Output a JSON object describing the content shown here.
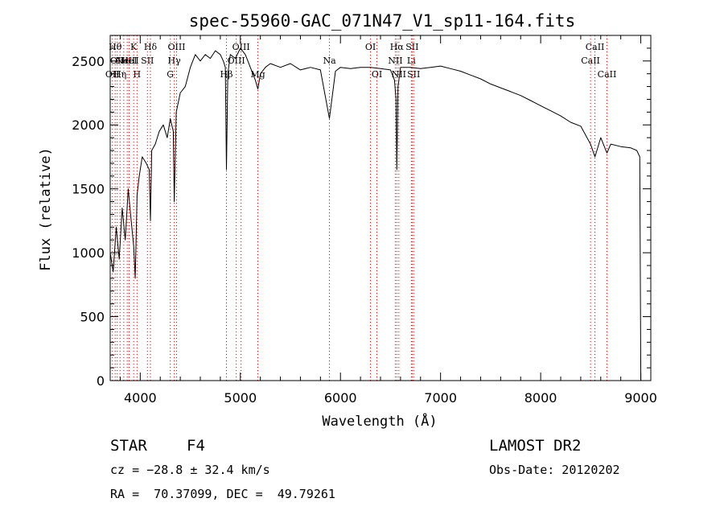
{
  "chart_data": {
    "type": "line",
    "title": "spec-55960-GAC_071N47_V1_sp11-164.fits",
    "xlabel": "Wavelength (Å)",
    "ylabel": "Flux (relative)",
    "xlim": [
      3700,
      9100
    ],
    "ylim": [
      0,
      2700
    ],
    "xticks": [
      4000,
      5000,
      6000,
      7000,
      8000,
      9000
    ],
    "yticks": [
      0,
      500,
      1000,
      1500,
      2000,
      2500
    ],
    "grid": false,
    "legend": "none",
    "line_color": "#000000",
    "marker_color": "#cc0000",
    "series": [
      {
        "x": [
          3700,
          3730,
          3760,
          3790,
          3820,
          3850,
          3880,
          3910,
          3935,
          3950,
          3968,
          3990,
          4020,
          4060,
          4090,
          4102,
          4115,
          4150,
          4190,
          4230,
          4270,
          4300,
          4330,
          4340,
          4360,
          4400,
          4450,
          4500,
          4550,
          4600,
          4650,
          4700,
          4750,
          4800,
          4830,
          4850,
          4861,
          4875,
          4900,
          4950,
          5000,
          5050,
          5100,
          5150,
          5175,
          5200,
          5250,
          5300,
          5400,
          5500,
          5600,
          5700,
          5800,
          5890,
          5950,
          6000,
          6100,
          6200,
          6300,
          6400,
          6500,
          6540,
          6555,
          6563,
          6575,
          6600,
          6700,
          6800,
          6900,
          7000,
          7100,
          7200,
          7300,
          7400,
          7500,
          7600,
          7700,
          7800,
          7900,
          8000,
          8100,
          8200,
          8300,
          8400,
          8498,
          8542,
          8600,
          8662,
          8700,
          8800,
          8900,
          8960,
          8990,
          9000
        ],
        "y": [
          1000,
          850,
          1200,
          950,
          1350,
          1100,
          1500,
          1250,
          1050,
          800,
          1450,
          1600,
          1750,
          1700,
          1650,
          1250,
          1800,
          1850,
          1950,
          2000,
          1900,
          2050,
          1950,
          1400,
          2100,
          2250,
          2300,
          2450,
          2550,
          2500,
          2550,
          2520,
          2580,
          2550,
          2500,
          2450,
          1650,
          2400,
          2550,
          2520,
          2600,
          2550,
          2450,
          2350,
          2280,
          2400,
          2450,
          2480,
          2450,
          2480,
          2430,
          2450,
          2430,
          2050,
          2420,
          2450,
          2440,
          2450,
          2450,
          2440,
          2430,
          2350,
          2200,
          1650,
          2300,
          2450,
          2450,
          2440,
          2450,
          2460,
          2440,
          2420,
          2390,
          2360,
          2320,
          2290,
          2260,
          2230,
          2190,
          2150,
          2110,
          2070,
          2020,
          1990,
          1850,
          1750,
          1900,
          1780,
          1850,
          1830,
          1820,
          1800,
          1750,
          0
        ]
      }
    ],
    "annotations": [
      {
        "wl": 3722,
        "text": "OII",
        "row": 3
      },
      {
        "wl": 3750,
        "text": "Hθ",
        "row": 1
      },
      {
        "wl": 3770,
        "text": "OII",
        "row": 2
      },
      {
        "wl": 3798,
        "text": "Hη",
        "row": 3
      },
      {
        "wl": 3835,
        "text": "He",
        "row": 2
      },
      {
        "wl": 3870,
        "text": "NeIII",
        "row": 2
      },
      {
        "wl": 3889,
        "text": "HeI",
        "row": 2
      },
      {
        "wl": 3934,
        "text": "K",
        "row": 1
      },
      {
        "wl": 3968,
        "text": "H",
        "row": 3
      },
      {
        "wl": 4072,
        "text": "SII",
        "row": 2
      },
      {
        "wl": 4102,
        "text": "Hδ",
        "row": 1
      },
      {
        "wl": 4300,
        "text": "G",
        "row": 3
      },
      {
        "wl": 4340,
        "text": "Hγ",
        "row": 2
      },
      {
        "wl": 4363,
        "text": "OIII",
        "row": 1
      },
      {
        "wl": 4861,
        "text": "Hβ",
        "row": 3
      },
      {
        "wl": 4959,
        "text": "OIII",
        "row": 2
      },
      {
        "wl": 5007,
        "text": "OIII",
        "row": 1
      },
      {
        "wl": 5175,
        "text": "Mg",
        "row": 3
      },
      {
        "wl": 5890,
        "text": "Na",
        "row": 2
      },
      {
        "wl": 6300,
        "text": "OI",
        "row": 1
      },
      {
        "wl": 6364,
        "text": "OI",
        "row": 3
      },
      {
        "wl": 6548,
        "text": "NII",
        "row": 2
      },
      {
        "wl": 6563,
        "text": "Hα",
        "row": 1
      },
      {
        "wl": 6583,
        "text": "NII",
        "row": 3
      },
      {
        "wl": 6708,
        "text": "Li",
        "row": 2
      },
      {
        "wl": 6716,
        "text": "SII",
        "row": 1
      },
      {
        "wl": 6731,
        "text": "SII",
        "row": 3
      },
      {
        "wl": 8498,
        "text": "CaII",
        "row": 2
      },
      {
        "wl": 8542,
        "text": "CaII",
        "row": 1
      },
      {
        "wl": 8662,
        "text": "CaII",
        "row": 3
      }
    ]
  },
  "info": {
    "class_label": "STAR",
    "subclass": "F4",
    "survey": "LAMOST DR2",
    "cz": "cz = −28.8 ± 32.4 km/s",
    "obs_date": "Obs-Date: 20120202",
    "coords": "RA =  70.37099, DEC =  49.79261"
  }
}
